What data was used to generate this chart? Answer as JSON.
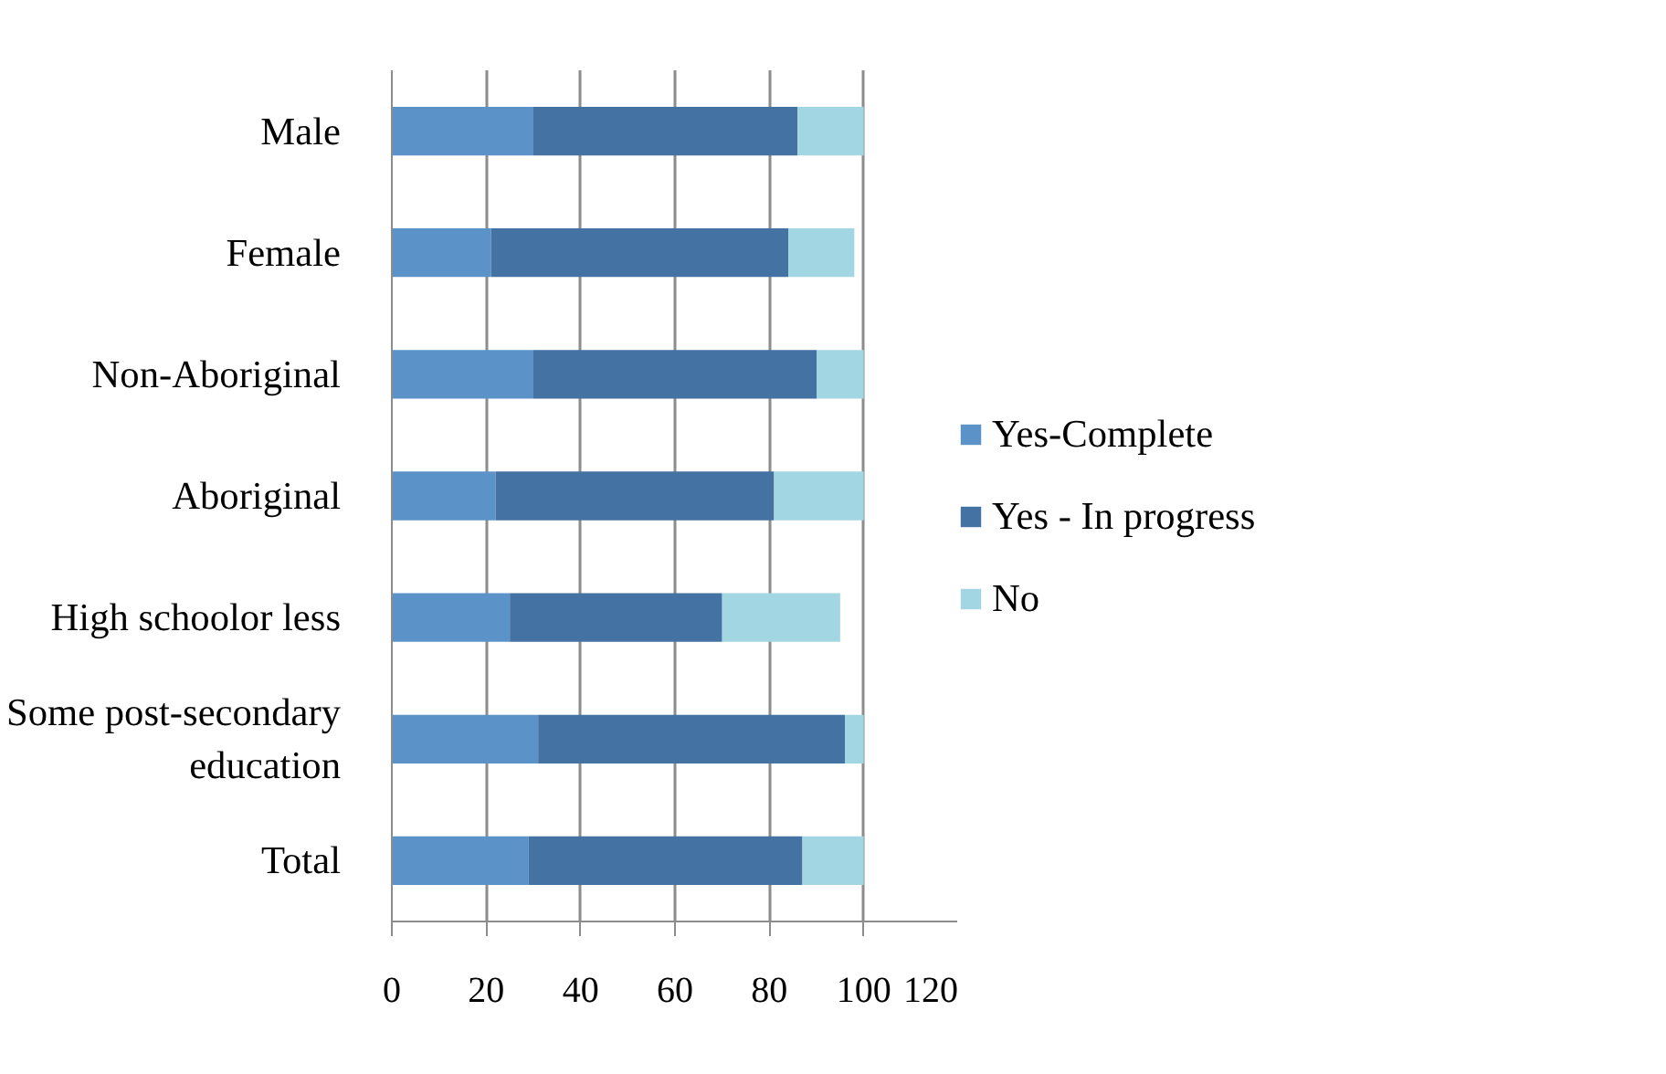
{
  "chart_data": {
    "type": "bar",
    "orientation": "horizontal",
    "stacked": true,
    "categories": [
      "Male",
      "Female",
      "Non-Aboriginal",
      "Aboriginal",
      "High schoolor less",
      "Some post-secondary education",
      "Total"
    ],
    "series": [
      {
        "name": "Yes-Complete",
        "color": "#5b93c8",
        "values": [
          30,
          21,
          30,
          22,
          25,
          31,
          29
        ]
      },
      {
        "name": "Yes - In progress",
        "color": "#4472a2",
        "values": [
          56,
          63,
          60,
          59,
          45,
          65,
          58
        ]
      },
      {
        "name": "No",
        "color": "#a3d6e3",
        "values": [
          14,
          14,
          10,
          19,
          25,
          4,
          13
        ]
      }
    ],
    "xlim": [
      0,
      120
    ],
    "xticks": [
      0,
      20,
      40,
      60,
      80,
      100,
      120
    ],
    "grid": "x",
    "legend": "right"
  }
}
